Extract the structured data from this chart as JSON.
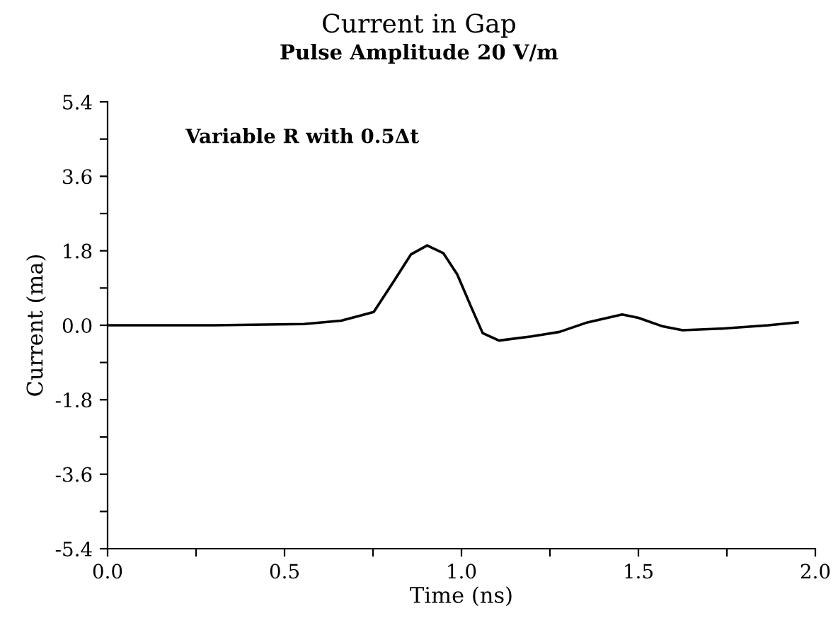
{
  "chart_data": {
    "type": "line",
    "title": "Current in Gap",
    "subtitle": "Pulse Amplitude 20 V/m",
    "xlabel": "Time (ns)",
    "ylabel": "Current (ma)",
    "annotations": [
      "Variable R with 0.5Δt"
    ],
    "x": [
      0,
      0.3,
      0.555,
      0.66,
      0.752,
      0.804,
      0.857,
      0.903,
      0.949,
      0.988,
      1.028,
      1.06,
      1.106,
      1.198,
      1.277,
      1.356,
      1.454,
      1.5,
      1.566,
      1.625,
      1.736,
      1.867,
      1.95
    ],
    "series": [
      {
        "color": "#000000",
        "values": [
          0,
          0,
          0.03,
          0.11,
          0.32,
          1.0,
          1.71,
          1.93,
          1.74,
          1.23,
          0.43,
          -0.19,
          -0.37,
          -0.27,
          -0.16,
          0.07,
          0.26,
          0.18,
          -0.02,
          -0.12,
          -0.08,
          0.0,
          0.07
        ]
      }
    ],
    "xlim": [
      0,
      2.0
    ],
    "ylim": [
      -5.4,
      5.4
    ],
    "xticks": [
      {
        "value": 0,
        "label": "0.0"
      },
      {
        "value": 0.25,
        "label": null
      },
      0.5,
      {
        "value": 0.75,
        "label": null
      },
      {
        "value": 1.0,
        "label": "1.0"
      },
      {
        "value": 1.25,
        "label": null
      },
      1.5,
      {
        "value": 1.75,
        "label": null
      },
      {
        "value": 2.0,
        "label": "2.0"
      }
    ],
    "yticks": [
      -5.4,
      {
        "value": -4.5,
        "label": null
      },
      -3.6,
      {
        "value": -2.7,
        "label": null
      },
      -1.8,
      {
        "value": -0.9,
        "label": null
      },
      {
        "value": 0,
        "label": "0.0"
      },
      {
        "value": 0.9,
        "label": null
      },
      1.8,
      {
        "value": 2.7,
        "label": null
      },
      3.6,
      {
        "value": 4.5,
        "label": null
      },
      5.4
    ],
    "grid": false,
    "legend": false,
    "marker": "none",
    "line_style": "solid"
  }
}
